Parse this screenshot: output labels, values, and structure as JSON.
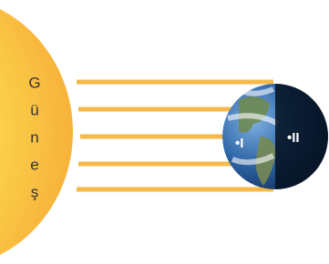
{
  "sun": {
    "letters": [
      "G",
      "ü",
      "n",
      "e",
      "ş"
    ]
  },
  "earth": {
    "points": [
      {
        "label": "I"
      },
      {
        "label": "II"
      }
    ]
  }
}
